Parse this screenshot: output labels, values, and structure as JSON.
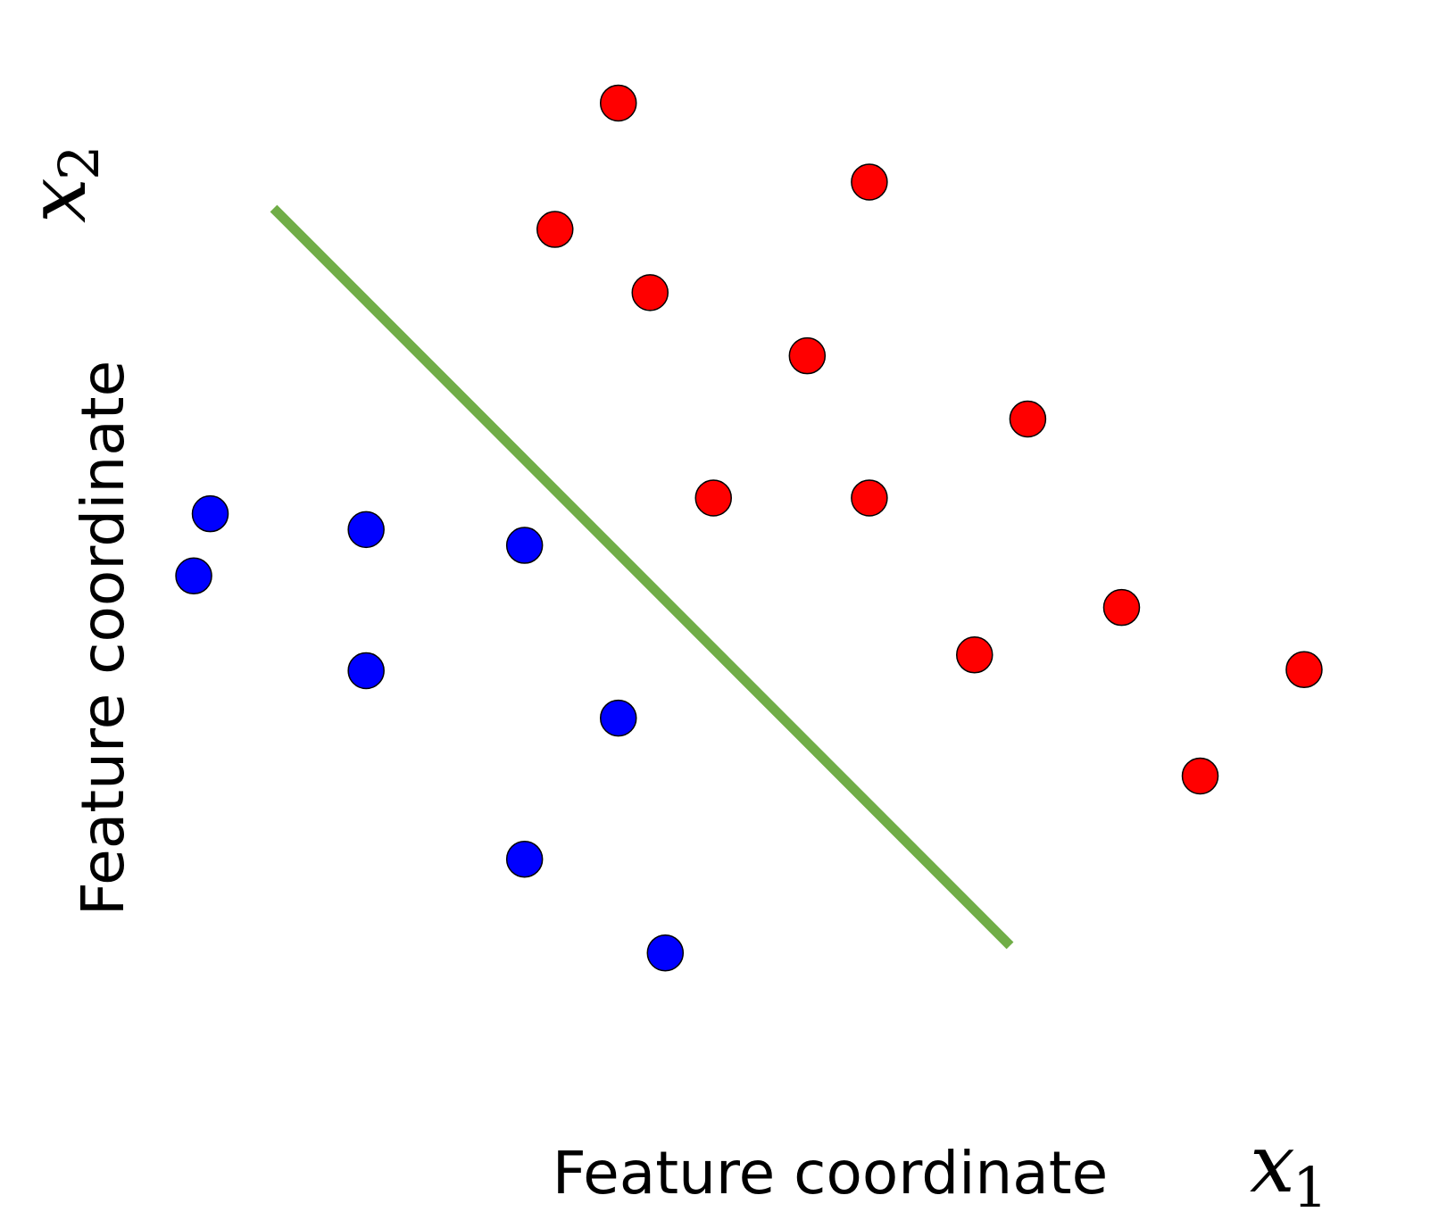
{
  "chart_data": {
    "type": "scatter",
    "xlabel": "Feature coordinate",
    "ylabel": "Feature coordinate",
    "x_symbol": {
      "base": "x",
      "sub": "1"
    },
    "y_symbol": {
      "base": "x",
      "sub": "2"
    },
    "xlim": [
      0,
      1000
    ],
    "ylim": [
      0,
      1000
    ],
    "grid": false,
    "axes_visible": false,
    "series": [
      {
        "color": "#ff0000",
        "points": [
          {
            "x": 347,
            "y": 953
          },
          {
            "x": 545,
            "y": 878
          },
          {
            "x": 297,
            "y": 833
          },
          {
            "x": 372,
            "y": 773
          },
          {
            "x": 496,
            "y": 713
          },
          {
            "x": 670,
            "y": 653
          },
          {
            "x": 422,
            "y": 578
          },
          {
            "x": 545,
            "y": 578
          },
          {
            "x": 744,
            "y": 474
          },
          {
            "x": 628,
            "y": 429
          },
          {
            "x": 888,
            "y": 415
          },
          {
            "x": 806,
            "y": 314
          }
        ]
      },
      {
        "color": "#0000ff",
        "points": [
          {
            "x": 25,
            "y": 563
          },
          {
            "x": 12,
            "y": 504
          },
          {
            "x": 148,
            "y": 548
          },
          {
            "x": 273,
            "y": 533
          },
          {
            "x": 148,
            "y": 414
          },
          {
            "x": 347,
            "y": 369
          },
          {
            "x": 273,
            "y": 235
          },
          {
            "x": 384,
            "y": 146
          }
        ]
      }
    ],
    "boundary": {
      "color": "#70ad47",
      "points": [
        {
          "x": 75,
          "y": 853
        },
        {
          "x": 656,
          "y": 153
        }
      ]
    }
  }
}
